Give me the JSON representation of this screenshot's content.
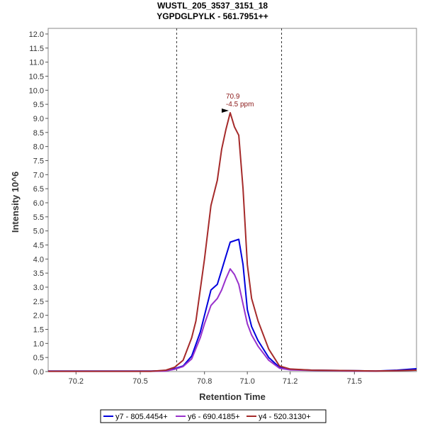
{
  "chart_data": {
    "type": "line",
    "title": "WUSTL_205_3537_3151_18",
    "subtitle": "YGPDGLPYLK - 561.7951++",
    "xlabel": "Retention Time",
    "ylabel": "Intensity 10^6",
    "xlim": [
      70.07,
      71.79
    ],
    "ylim": [
      0,
      12.2
    ],
    "x_ticks": [
      "70.2",
      "70.5",
      "70.8",
      "71.0",
      "71.2",
      "71.5"
    ],
    "x_tick_values": [
      70.2,
      70.5,
      70.8,
      71.0,
      71.2,
      71.5
    ],
    "y_ticks": [
      "0.0",
      "0.5",
      "1.0",
      "1.5",
      "2.0",
      "2.5",
      "3.0",
      "3.5",
      "4.0",
      "4.5",
      "5.0",
      "5.5",
      "6.0",
      "6.5",
      "7.0",
      "7.5",
      "8.0",
      "8.5",
      "9.0",
      "9.5",
      "10.0",
      "10.5",
      "11.0",
      "11.5",
      "12.0"
    ],
    "y_tick_values": [
      0,
      0.5,
      1,
      1.5,
      2,
      2.5,
      3,
      3.5,
      4,
      4.5,
      5,
      5.5,
      6,
      6.5,
      7,
      7.5,
      8,
      8.5,
      9,
      9.5,
      10,
      10.5,
      11,
      11.5,
      12
    ],
    "integration_bounds": [
      70.67,
      71.16
    ],
    "grid": false,
    "legend_position": "bottom",
    "annotation": {
      "text_line1": "70.9",
      "text_line2": "-4.5 ppm",
      "x": 70.92,
      "y": 9.2,
      "color": "#8b1a1a"
    },
    "series": [
      {
        "name": "y7 - 805.4454+",
        "color": "#0000dd",
        "x": [
          70.07,
          70.3,
          70.55,
          70.62,
          70.66,
          70.7,
          70.74,
          70.78,
          70.8,
          70.83,
          70.86,
          70.88,
          70.9,
          70.92,
          70.94,
          70.96,
          70.98,
          71.0,
          71.02,
          71.05,
          71.1,
          71.15,
          71.2,
          71.3,
          71.4,
          71.5,
          71.6,
          71.7,
          71.79
        ],
        "y": [
          0.02,
          0.02,
          0.02,
          0.03,
          0.1,
          0.2,
          0.55,
          1.4,
          2.0,
          2.9,
          3.1,
          3.6,
          4.1,
          4.6,
          4.65,
          4.7,
          3.8,
          2.2,
          1.6,
          1.1,
          0.5,
          0.15,
          0.08,
          0.05,
          0.04,
          0.03,
          0.02,
          0.05,
          0.1
        ]
      },
      {
        "name": "y6 - 690.4185+",
        "color": "#9932cc",
        "x": [
          70.07,
          70.3,
          70.55,
          70.62,
          70.66,
          70.7,
          70.74,
          70.78,
          70.8,
          70.83,
          70.86,
          70.88,
          70.9,
          70.92,
          70.94,
          70.96,
          70.98,
          71.0,
          71.02,
          71.05,
          71.1,
          71.15,
          71.2,
          71.3,
          71.4,
          71.5,
          71.6,
          71.7,
          71.79
        ],
        "y": [
          0.01,
          0.01,
          0.01,
          0.02,
          0.08,
          0.18,
          0.45,
          1.2,
          1.7,
          2.35,
          2.6,
          2.9,
          3.3,
          3.65,
          3.45,
          3.1,
          2.4,
          1.7,
          1.3,
          0.9,
          0.4,
          0.12,
          0.06,
          0.04,
          0.03,
          0.02,
          0.02,
          0.03,
          0.05
        ]
      },
      {
        "name": "y4 - 520.3130+",
        "color": "#a52a2a",
        "x": [
          70.07,
          70.3,
          70.55,
          70.62,
          70.66,
          70.7,
          70.74,
          70.76,
          70.8,
          70.83,
          70.86,
          70.88,
          70.9,
          70.92,
          70.94,
          70.96,
          70.98,
          71.0,
          71.02,
          71.05,
          71.1,
          71.15,
          71.2,
          71.3,
          71.4,
          71.5,
          71.6,
          71.7,
          71.79
        ],
        "y": [
          0.01,
          0.01,
          0.01,
          0.05,
          0.15,
          0.4,
          1.2,
          1.8,
          4.0,
          5.9,
          6.8,
          7.9,
          8.6,
          9.2,
          8.7,
          8.4,
          6.5,
          3.8,
          2.6,
          1.8,
          0.8,
          0.2,
          0.09,
          0.05,
          0.04,
          0.03,
          0.02,
          0.03,
          0.05
        ]
      }
    ]
  }
}
